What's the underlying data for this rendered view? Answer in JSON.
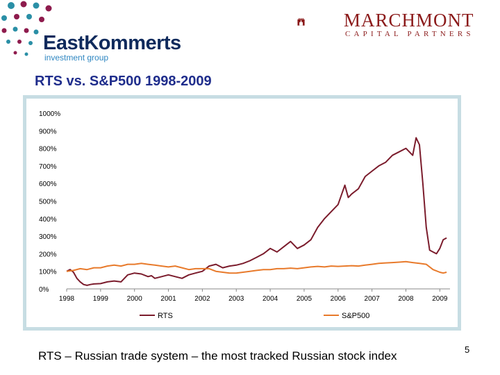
{
  "header": {
    "left_logo": {
      "name": "EastKommerts",
      "subtitle": "investment group"
    },
    "right_logo": {
      "name": "MARCHMONT",
      "subtitle": "CAPITAL PARTNERS"
    }
  },
  "slide_title": "RTS vs. S&P500 1998-2009",
  "footnote": "RTS – Russian trade system – the most tracked Russian stock index",
  "page_number": "5",
  "colors": {
    "rts": "#7b1c2c",
    "sp500": "#e87a2b",
    "frame": "#c7dde3",
    "title": "#1f2d8c"
  },
  "chart_data": {
    "type": "line",
    "title": "",
    "xlabel": "",
    "ylabel": "",
    "x_ticks": [
      "1998",
      "1999",
      "2000",
      "2001",
      "2002",
      "2003",
      "2004",
      "2005",
      "2006",
      "2007",
      "2008",
      "2009"
    ],
    "y_ticks": [
      "0%",
      "100%",
      "200%",
      "300%",
      "400%",
      "500%",
      "600%",
      "700%",
      "800%",
      "900%",
      "1000%"
    ],
    "xlim": [
      1998.0,
      2009.3
    ],
    "ylim": [
      0,
      1000
    ],
    "grid": false,
    "legend": "bottom",
    "series": [
      {
        "name": "RTS",
        "x": [
          1998.0,
          1998.1,
          1998.2,
          1998.3,
          1998.4,
          1998.5,
          1998.6,
          1998.7,
          1998.8,
          1999.0,
          1999.2,
          1999.4,
          1999.6,
          1999.8,
          2000.0,
          2000.2,
          2000.4,
          2000.5,
          2000.6,
          2000.8,
          2001.0,
          2001.2,
          2001.4,
          2001.6,
          2001.8,
          2002.0,
          2002.2,
          2002.4,
          2002.6,
          2002.8,
          2003.0,
          2003.2,
          2003.4,
          2003.6,
          2003.8,
          2004.0,
          2004.2,
          2004.4,
          2004.6,
          2004.8,
          2005.0,
          2005.2,
          2005.4,
          2005.6,
          2005.8,
          2006.0,
          2006.2,
          2006.3,
          2006.4,
          2006.6,
          2006.8,
          2007.0,
          2007.2,
          2007.4,
          2007.6,
          2007.8,
          2008.0,
          2008.2,
          2008.3,
          2008.4,
          2008.5,
          2008.6,
          2008.7,
          2008.8,
          2008.9,
          2009.0,
          2009.1,
          2009.2
        ],
        "y": [
          100,
          110,
          95,
          60,
          40,
          25,
          20,
          25,
          28,
          30,
          40,
          45,
          40,
          80,
          90,
          85,
          70,
          75,
          60,
          70,
          80,
          70,
          60,
          80,
          90,
          100,
          130,
          140,
          120,
          130,
          135,
          145,
          160,
          180,
          200,
          230,
          210,
          240,
          270,
          230,
          250,
          280,
          350,
          400,
          440,
          480,
          590,
          520,
          540,
          570,
          640,
          670,
          700,
          720,
          760,
          780,
          800,
          760,
          860,
          820,
          600,
          350,
          220,
          210,
          200,
          230,
          280,
          290
        ]
      },
      {
        "name": "S&P500",
        "x": [
          1998.0,
          1998.2,
          1998.4,
          1998.6,
          1998.8,
          1999.0,
          1999.2,
          1999.4,
          1999.6,
          1999.8,
          2000.0,
          2000.2,
          2000.4,
          2000.6,
          2000.8,
          2001.0,
          2001.2,
          2001.4,
          2001.6,
          2001.8,
          2002.0,
          2002.2,
          2002.4,
          2002.6,
          2002.8,
          2003.0,
          2003.2,
          2003.4,
          2003.6,
          2003.8,
          2004.0,
          2004.2,
          2004.4,
          2004.6,
          2004.8,
          2005.0,
          2005.2,
          2005.4,
          2005.6,
          2005.8,
          2006.0,
          2006.2,
          2006.4,
          2006.6,
          2006.8,
          2007.0,
          2007.2,
          2007.4,
          2007.6,
          2007.8,
          2008.0,
          2008.2,
          2008.4,
          2008.6,
          2008.8,
          2009.0,
          2009.1,
          2009.2
        ],
        "y": [
          100,
          105,
          115,
          110,
          120,
          120,
          130,
          135,
          130,
          140,
          140,
          145,
          140,
          135,
          130,
          125,
          130,
          120,
          110,
          115,
          115,
          115,
          100,
          95,
          90,
          90,
          95,
          100,
          105,
          110,
          110,
          115,
          115,
          118,
          115,
          120,
          125,
          128,
          125,
          130,
          128,
          130,
          132,
          130,
          135,
          140,
          145,
          148,
          150,
          152,
          155,
          150,
          145,
          140,
          110,
          95,
          90,
          95
        ]
      }
    ]
  }
}
